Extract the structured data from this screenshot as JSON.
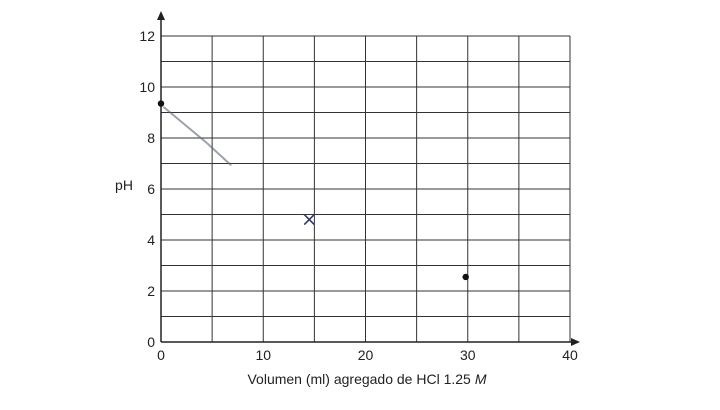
{
  "chart_data": {
    "type": "scatter",
    "title": "",
    "xlabel": "Volumen (ml) agregado de HCl 1.25",
    "xlabel_unit_italic": "M",
    "ylabel": "pH",
    "xlim": [
      0,
      40
    ],
    "ylim": [
      0,
      12
    ],
    "x_ticks": [
      0,
      10,
      20,
      30,
      40
    ],
    "y_ticks": [
      0,
      2,
      4,
      6,
      8,
      10,
      12
    ],
    "grid": true,
    "grid_x_step": 5,
    "grid_y_step": 1,
    "points": [
      {
        "x": 0,
        "y": 9.35
      },
      {
        "x": 29.8,
        "y": 2.55
      }
    ],
    "cross_marks": [
      {
        "x": 14.5,
        "y": 4.8
      }
    ],
    "hand_drawn_segment": [
      {
        "x": 0.3,
        "y": 9.2
      },
      {
        "x": 4.5,
        "y": 7.8
      },
      {
        "x": 6.8,
        "y": 6.95
      }
    ],
    "colors": {
      "axis": "#222222",
      "grid": "#333333",
      "point": "#111111",
      "cross": "#2d3a6b",
      "segment": "#5a6478"
    }
  }
}
